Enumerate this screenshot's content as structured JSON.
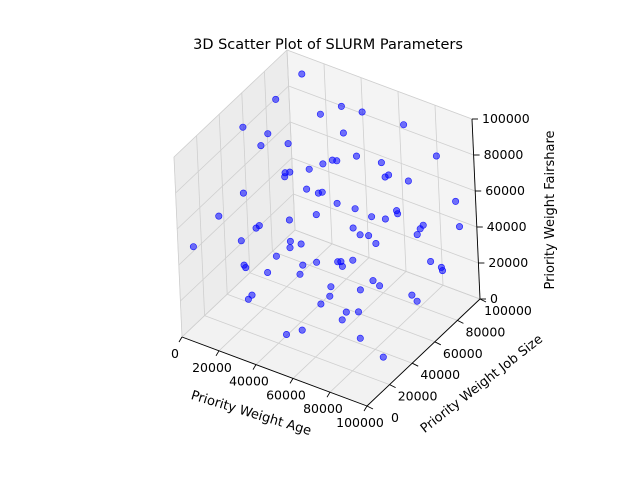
{
  "chart_data": {
    "type": "scatter",
    "projection": "3d",
    "title": "3D Scatter Plot of SLURM Parameters",
    "xlabel": "Priority Weight Age",
    "ylabel": "Priority Weight Job Size",
    "zlabel": "Priority Weight Fairshare",
    "xlim": [
      0,
      100000
    ],
    "ylim": [
      0,
      100000
    ],
    "zlim": [
      0,
      100000
    ],
    "xticks": [
      "0",
      "20000",
      "40000",
      "60000",
      "80000",
      "100000"
    ],
    "yticks": [
      "0",
      "20000",
      "40000",
      "60000",
      "80000",
      "100000"
    ],
    "zticks": [
      "0",
      "20000",
      "40000",
      "60000",
      "80000",
      "100000"
    ],
    "grid": true,
    "marker_color": "#0000ff",
    "marker_alpha": 0.55,
    "pane_color": "#f2f2f2",
    "points": [
      [
        8000,
        85000,
        60000
      ],
      [
        12000,
        70000,
        95000
      ],
      [
        5000,
        90000,
        40000
      ],
      [
        15000,
        60000,
        15000
      ],
      [
        20000,
        95000,
        75000
      ],
      [
        25000,
        80000,
        30000
      ],
      [
        30000,
        65000,
        55000
      ],
      [
        10000,
        40000,
        20000
      ],
      [
        35000,
        90000,
        88000
      ],
      [
        40000,
        75000,
        45000
      ],
      [
        18000,
        30000,
        10000
      ],
      [
        45000,
        55000,
        65000
      ],
      [
        50000,
        85000,
        25000
      ],
      [
        22000,
        20000,
        50000
      ],
      [
        55000,
        70000,
        80000
      ],
      [
        60000,
        95000,
        35000
      ],
      [
        28000,
        50000,
        70000
      ],
      [
        65000,
        40000,
        15000
      ],
      [
        70000,
        90000,
        60000
      ],
      [
        33000,
        10000,
        30000
      ],
      [
        75000,
        60000,
        90000
      ],
      [
        80000,
        80000,
        40000
      ],
      [
        38000,
        35000,
        85000
      ],
      [
        85000,
        20000,
        20000
      ],
      [
        90000,
        70000,
        55000
      ],
      [
        42000,
        5000,
        75000
      ],
      [
        95000,
        50000,
        30000
      ],
      [
        48000,
        45000,
        10000
      ],
      [
        52000,
        25000,
        45000
      ],
      [
        58000,
        15000,
        65000
      ],
      [
        62000,
        55000,
        5000
      ],
      [
        68000,
        30000,
        50000
      ],
      [
        72000,
        85000,
        95000
      ],
      [
        78000,
        45000,
        70000
      ],
      [
        82000,
        10000,
        35000
      ],
      [
        88000,
        65000,
        15000
      ],
      [
        92000,
        35000,
        80000
      ],
      [
        97000,
        90000,
        45000
      ],
      [
        3000,
        55000,
        85000
      ],
      [
        7000,
        25000,
        55000
      ],
      [
        13000,
        75000,
        10000
      ],
      [
        17000,
        95000,
        30000
      ],
      [
        23000,
        45000,
        95000
      ],
      [
        27000,
        15000,
        40000
      ],
      [
        32000,
        85000,
        60000
      ],
      [
        37000,
        60000,
        20000
      ],
      [
        43000,
        95000,
        85000
      ],
      [
        47000,
        30000,
        35000
      ],
      [
        53000,
        70000,
        50000
      ],
      [
        57000,
        50000,
        90000
      ],
      [
        63000,
        5000,
        25000
      ],
      [
        67000,
        75000,
        70000
      ],
      [
        73000,
        25000,
        55000
      ],
      [
        77000,
        95000,
        15000
      ],
      [
        83000,
        40000,
        60000
      ],
      [
        87000,
        15000,
        85000
      ],
      [
        93000,
        80000,
        25000
      ],
      [
        98000,
        55000,
        65000
      ],
      [
        2000,
        10000,
        45000
      ],
      [
        11000,
        50000,
        35000
      ],
      [
        19000,
        85000,
        50000
      ],
      [
        26000,
        35000,
        25000
      ],
      [
        34000,
        5000,
        90000
      ],
      [
        41000,
        65000,
        5000
      ],
      [
        49000,
        20000,
        60000
      ],
      [
        56000,
        95000,
        55000
      ],
      [
        64000,
        40000,
        40000
      ],
      [
        71000,
        60000,
        20000
      ],
      [
        79000,
        5000,
        50000
      ],
      [
        86000,
        90000,
        80000
      ],
      [
        94000,
        25000,
        10000
      ],
      [
        99000,
        70000,
        35000
      ],
      [
        14000,
        90000,
        98000
      ],
      [
        29000,
        100000,
        65000
      ],
      [
        44000,
        80000,
        12000
      ],
      [
        59000,
        35000,
        98000
      ],
      [
        74000,
        50000,
        30000
      ],
      [
        89000,
        100000,
        50000
      ],
      [
        6000,
        65000,
        70000
      ],
      [
        36000,
        40000,
        55000
      ],
      [
        51000,
        10000,
        15000
      ],
      [
        66000,
        85000,
        45000
      ],
      [
        81000,
        30000,
        70000
      ],
      [
        96000,
        5000,
        60000
      ]
    ]
  }
}
